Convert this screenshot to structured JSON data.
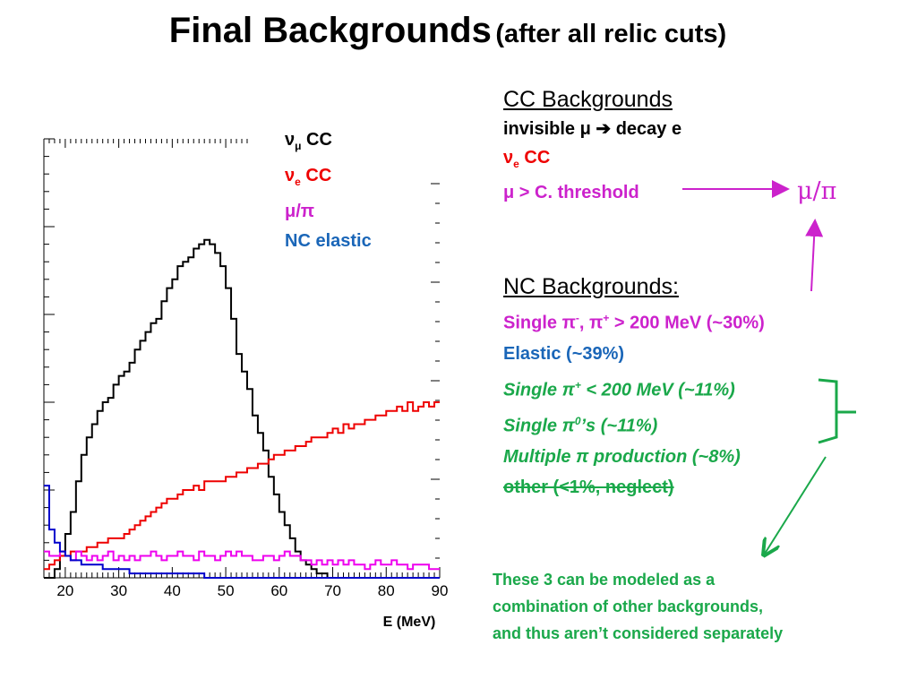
{
  "slide": {
    "title_main": "Final Backgrounds",
    "title_sub": "(after all relic cuts)"
  },
  "legend": {
    "numu_nu": "ν",
    "numu_sub": "μ",
    "numu_cc": "CC",
    "nue_nu": "ν",
    "nue_sub": "e",
    "nue_cc": "CC",
    "mupi": "μ/π",
    "nc": "NC elastic"
  },
  "cc_panel": {
    "header": "CC Backgrounds",
    "line1": "invisible μ",
    "line1_arrow": "➔",
    "line1_end": "decay e",
    "line2_nu": "ν",
    "line2_sub": "e",
    "line2_cc": "CC",
    "line3": "μ > C. threshold",
    "target": "μ/π"
  },
  "nc_panel": {
    "header": "NC Backgrounds:",
    "items": [
      {
        "pre": "Single π",
        "sup1": "-",
        "mid": ", π",
        "sup2": "+",
        "post": " > 200 MeV (~30%)"
      },
      {
        "text": "Elastic (~39%)"
      },
      {
        "pre": "Single π",
        "sup": "+",
        "post": " < 200 MeV (~11%)"
      },
      {
        "pre": "Single π",
        "sup": "0",
        "post": "’s (~11%)"
      },
      {
        "text": "Multiple π production (~8%)"
      },
      {
        "text": "other (<1%, neglect)"
      }
    ]
  },
  "note": {
    "line1": "These 3 can be modeled as a",
    "line2": "combination of  other backgrounds,",
    "line3": "and thus aren’t considered separately"
  },
  "colors": {
    "numu_cc": "#000000",
    "nue_cc": "#ee0000",
    "mupi": "#ee00ee",
    "nc_elastic": "#0000cc",
    "mag_text": "#cc22cc",
    "green_text": "#1aa84a",
    "blue_text": "#1a66b8"
  },
  "chart_data": {
    "type": "line",
    "step": true,
    "xlabel": "E (MeV)",
    "ylabel": "",
    "xlim": [
      16,
      90
    ],
    "ylim": [
      0,
      100
    ],
    "x_ticks": [
      20,
      30,
      40,
      50,
      60,
      70,
      80,
      90
    ],
    "bin_width": 1,
    "x_start": 16,
    "series": [
      {
        "name": "νμ CC",
        "color": "#000000",
        "values": [
          0,
          0,
          2,
          5,
          10,
          15,
          22,
          28,
          32,
          35,
          38,
          40,
          41,
          44,
          46,
          47,
          49,
          52,
          54,
          56,
          58,
          59,
          63,
          66,
          68,
          71,
          72,
          73,
          75,
          76,
          77,
          76,
          74,
          71,
          66,
          59,
          51,
          47,
          43,
          37,
          33,
          29,
          23,
          19,
          15,
          12,
          9,
          6,
          4,
          3,
          2,
          1,
          1,
          0,
          0,
          0,
          0,
          0,
          0,
          0,
          0,
          0,
          0,
          0,
          0,
          0,
          0,
          0,
          0,
          0,
          0,
          0,
          0,
          0
        ]
      },
      {
        "name": "νe CC",
        "color": "#ee0000",
        "values": [
          2,
          3,
          4,
          5,
          5,
          6,
          6,
          6,
          7,
          7,
          8,
          8,
          9,
          9,
          9,
          10,
          11,
          12,
          13,
          14,
          15,
          16,
          17,
          18,
          18,
          19,
          20,
          20,
          21,
          20,
          22,
          22,
          22,
          22,
          23,
          23,
          24,
          24,
          25,
          25,
          26,
          26,
          27,
          28,
          28,
          29,
          29,
          30,
          30,
          31,
          32,
          32,
          32,
          33,
          34,
          33,
          35,
          34,
          35,
          35,
          36,
          36,
          37,
          37,
          38,
          38,
          39,
          38,
          40,
          38,
          39,
          40,
          39,
          40
        ]
      },
      {
        "name": "μ/π",
        "color": "#ee00ee",
        "values": [
          6,
          5,
          5,
          6,
          5,
          4,
          6,
          5,
          4,
          5,
          4,
          5,
          6,
          4,
          5,
          4,
          5,
          4,
          5,
          5,
          6,
          5,
          4,
          5,
          5,
          6,
          5,
          5,
          4,
          6,
          5,
          5,
          4,
          5,
          6,
          5,
          6,
          5,
          5,
          4,
          4,
          5,
          5,
          4,
          5,
          6,
          5,
          5,
          4,
          4,
          3,
          4,
          3,
          4,
          3,
          4,
          3,
          4,
          3,
          3,
          2,
          3,
          4,
          3,
          3,
          4,
          3,
          3,
          2,
          3,
          3,
          3,
          2,
          2
        ]
      },
      {
        "name": "NC elastic",
        "color": "#0000cc",
        "values": [
          21,
          11,
          8,
          6,
          5,
          4,
          4,
          3,
          3,
          3,
          3,
          2,
          2,
          2,
          2,
          2,
          1,
          1,
          1,
          1,
          1,
          1,
          1,
          1,
          1,
          1,
          1,
          1,
          1,
          1,
          0,
          0,
          0,
          0,
          0,
          0,
          0,
          0,
          0,
          0,
          0,
          0,
          0,
          0,
          0,
          0,
          0,
          0,
          0,
          0,
          0,
          0,
          0,
          0,
          0,
          0,
          0,
          0,
          0,
          0,
          0,
          0,
          0,
          0,
          0,
          0,
          0,
          0,
          0,
          0,
          0,
          0,
          0,
          0
        ]
      }
    ]
  }
}
